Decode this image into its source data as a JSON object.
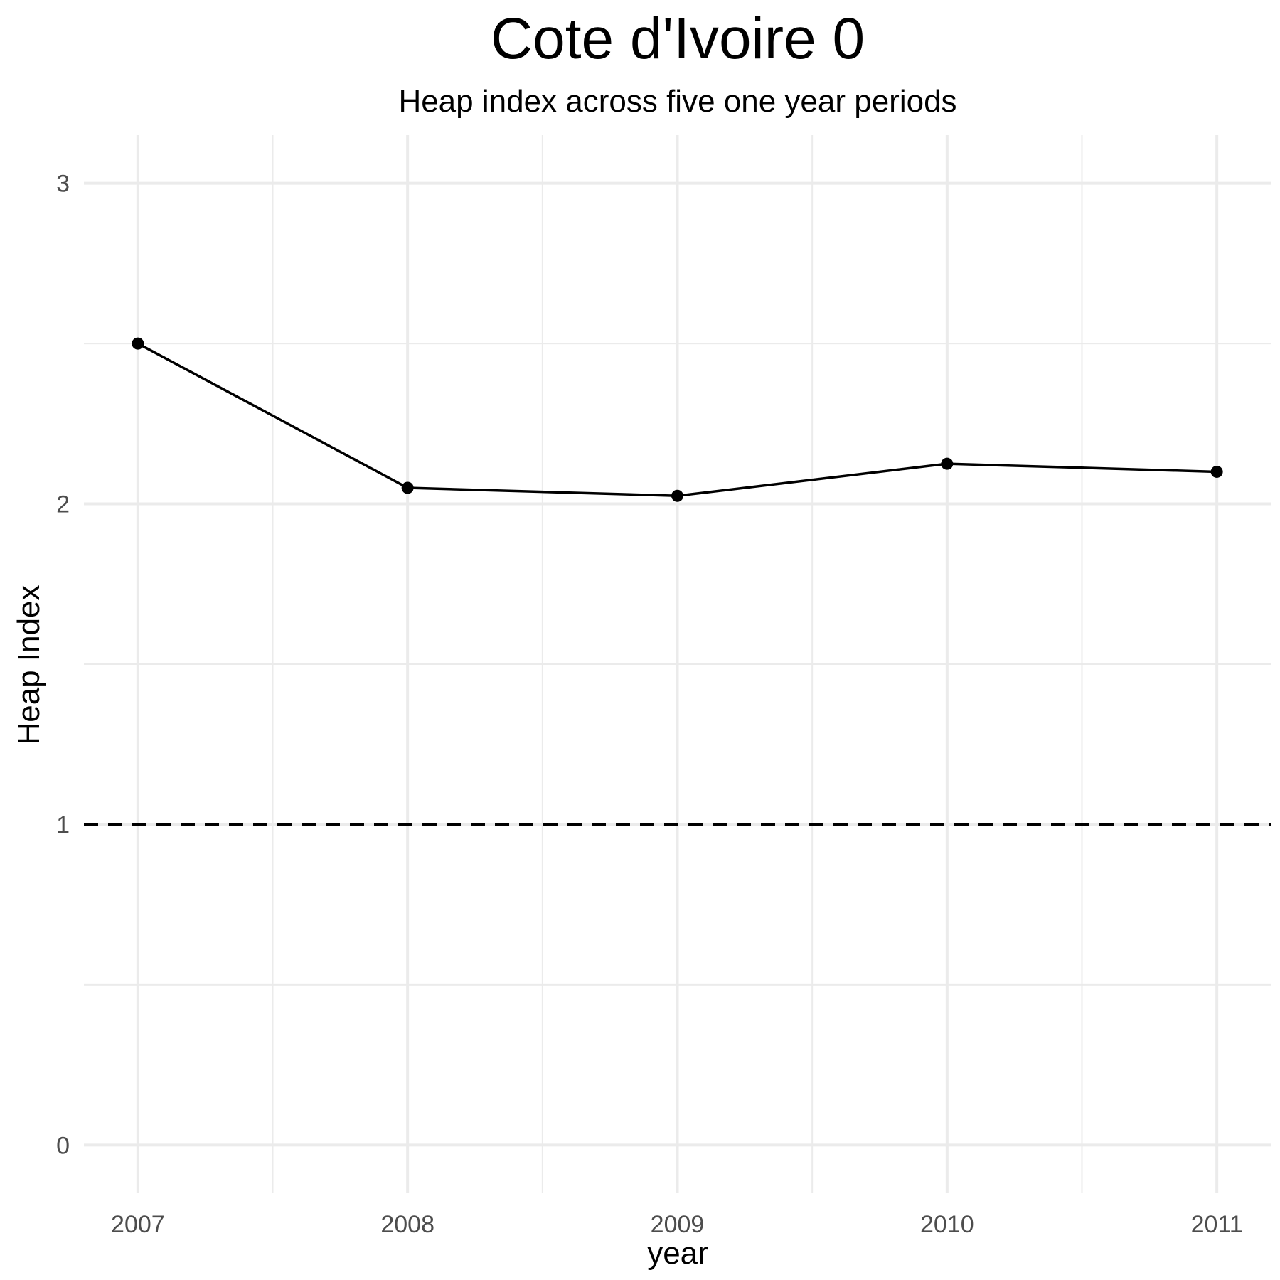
{
  "chart_data": {
    "type": "line",
    "title": "Cote d'Ivoire 0",
    "subtitle": "Heap index across five one year periods",
    "xlabel": "year",
    "ylabel": "Heap Index",
    "x": [
      2007,
      2008,
      2009,
      2010,
      2011
    ],
    "x_tick_labels": [
      "2007",
      "2008",
      "2009",
      "2010",
      "2011"
    ],
    "series": [
      {
        "values": [
          2.5,
          2.05,
          2.025,
          2.125,
          2.1
        ]
      }
    ],
    "y_ticks": [
      0,
      1,
      2,
      3
    ],
    "y_tick_labels": [
      "0",
      "1",
      "2",
      "3"
    ],
    "xlim": [
      2006.8,
      2011.2
    ],
    "ylim": [
      -0.15,
      3.15
    ],
    "reference_line": {
      "y": 1,
      "style": "dashed"
    },
    "grid": true,
    "legend": "none",
    "colors": {
      "line": "#000000",
      "grid": "#ebebeb",
      "tick_text": "#4d4d4d"
    }
  }
}
